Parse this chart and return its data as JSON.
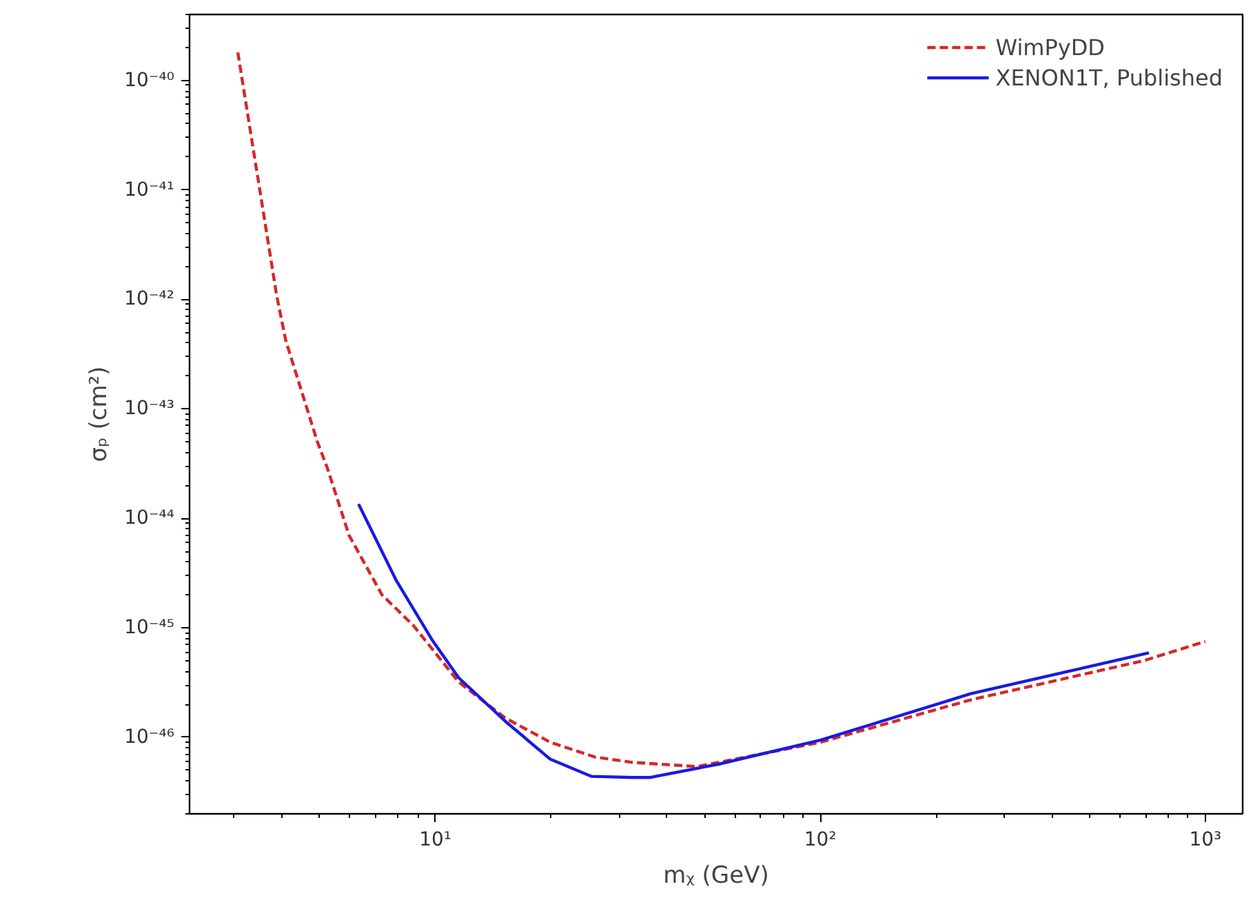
{
  "chart_data": {
    "type": "line",
    "xlabel": "mᵪ (GeV)",
    "ylabel": "σₚ (cm²)",
    "log": "xy",
    "legend": "top right",
    "grid": false,
    "xlim": [
      2.3,
      1250
    ],
    "ylim": [
      2e-47,
      4e-40
    ],
    "xticks": [
      {
        "value": 10,
        "label": "10¹"
      },
      {
        "value": 100,
        "label": "10²"
      },
      {
        "value": 1000,
        "label": "10³"
      }
    ],
    "yticks": [
      {
        "value": 1e-46,
        "label": "10⁻⁴⁶"
      },
      {
        "value": 1e-45,
        "label": "10⁻⁴⁵"
      },
      {
        "value": 1e-44,
        "label": "10⁻⁴⁴"
      },
      {
        "value": 1e-43,
        "label": "10⁻⁴³"
      },
      {
        "value": 1e-42,
        "label": "10⁻⁴²"
      },
      {
        "value": 1e-41,
        "label": "10⁻⁴¹"
      },
      {
        "value": 1e-40,
        "label": "10⁻⁴⁰"
      }
    ],
    "series": [
      {
        "name": "WimPyDD",
        "color": "#d62728",
        "line_style": "dashed",
        "x": [
          3.07,
          3.87,
          4.09,
          4.94,
          5.24,
          5.97,
          7.27,
          8.77,
          11.5,
          15.2,
          19.9,
          26.0,
          32.5,
          47.9,
          100,
          246,
          690,
          1000
        ],
        "values": [
          1.8e-40,
          1.1e-42,
          4.2e-43,
          5e-44,
          2.9e-44,
          7e-45,
          2e-45,
          1.05e-45,
          3.2e-46,
          1.5e-46,
          9e-47,
          6.6e-47,
          5.9e-47,
          5.4e-47,
          9e-47,
          2.2e-46,
          5e-46,
          7.5e-46
        ]
      },
      {
        "name": "XENON1T, Published",
        "color": "#1a1ae0",
        "line_style": "solid",
        "x": [
          6.32,
          7.9,
          9.8,
          11.5,
          15.2,
          19.9,
          25.4,
          32.5,
          36.2,
          54.6,
          100,
          246,
          714
        ],
        "values": [
          1.35e-44,
          2.75e-45,
          7.8e-46,
          3.5e-46,
          1.4e-46,
          6.3e-47,
          4.4e-47,
          4.3e-47,
          4.3e-47,
          5.7e-47,
          9.4e-47,
          2.5e-46,
          5.9e-46
        ]
      }
    ]
  }
}
